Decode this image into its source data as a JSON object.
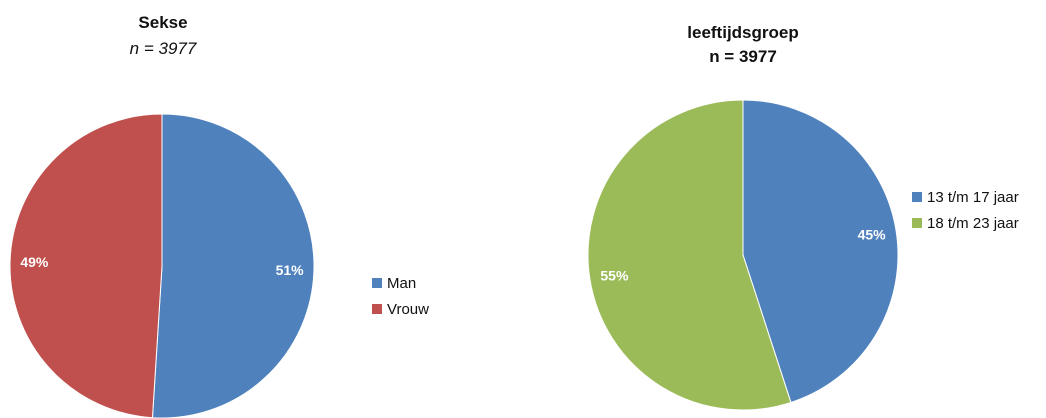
{
  "chart_data": [
    {
      "type": "pie",
      "title": "Sekse",
      "subtitle": "n = 3977",
      "categories": [
        "Man",
        "Vrouw"
      ],
      "values": [
        51,
        49
      ],
      "labels": [
        "51%",
        "49%"
      ],
      "colors": [
        "#4F81BD",
        "#C0504D"
      ],
      "legend": "right"
    },
    {
      "type": "pie",
      "title": "leeftijdsgroep",
      "subtitle": "n = 3977",
      "categories": [
        "13 t/m 17 jaar",
        "18 t/m 23 jaar"
      ],
      "values": [
        45,
        55
      ],
      "labels": [
        "45%",
        "55%"
      ],
      "colors": [
        "#4F81BD",
        "#9BBB59"
      ],
      "legend": "right"
    }
  ]
}
